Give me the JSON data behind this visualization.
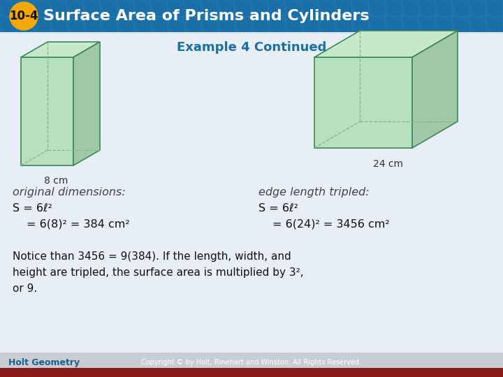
{
  "title_badge": "10-4",
  "title_text": "Surface Area of Prisms and Cylinders",
  "subtitle": "Example 4 Continued",
  "header_bg_color": "#1a6fa8",
  "badge_color": "#f5a800",
  "badge_text_color": "#111111",
  "title_text_color": "#ffffff",
  "subtitle_color": "#1a6fa8",
  "body_bg_color": "#e8eef5",
  "left_label": "8 cm",
  "right_label": "24 cm",
  "left_heading": "original dimensions:",
  "right_heading": "edge length tripled:",
  "left_eq1": "S = 6ℓ²",
  "left_eq2": "= 6(8)² = 384 cm²",
  "right_eq1": "S = 6ℓ²",
  "right_eq2": "= 6(24)² = 3456 cm²",
  "notice_line1": "Notice than 3456 = 9(384). If the length, width, and",
  "notice_line2": "height are tripled, the surface area is multiplied by 3²,",
  "notice_line3": "or 9.",
  "footer_text": "Holt Geometry",
  "footer_copyright": "Copyright © by Holt, Rinehart and Winston. All Rights Reserved.",
  "cube_color_face": "#b8dfc0",
  "cube_color_top": "#c8e8cc",
  "cube_color_right": "#a0c8a8",
  "cube_color_edge": "#3a8a50",
  "cube_dashed_color": "#7ab888",
  "footer_bg": "#c8cdd4",
  "footer_bar_color": "#8b1a1a"
}
